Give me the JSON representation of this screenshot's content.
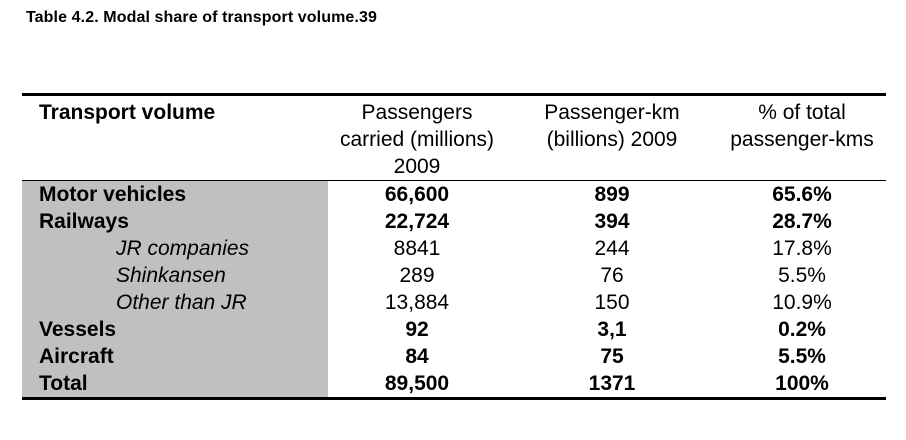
{
  "caption": "Table 4.2. Modal share of transport volume.39",
  "table": {
    "headers": [
      "Transport volume",
      "Passengers carried (millions) 2009",
      "Passenger-km (billions) 2009",
      "% of total passenger-kms"
    ],
    "rows": [
      {
        "label": "Motor vehicles",
        "passengers": "66,600",
        "pkm": "899",
        "share": "65.6%",
        "style": "bold"
      },
      {
        "label": "Railways",
        "passengers": "22,724",
        "pkm": "394",
        "share": "28.7%",
        "style": "bold"
      },
      {
        "label": "JR companies",
        "passengers": "8841",
        "pkm": "244",
        "share": "17.8%",
        "style": "sub"
      },
      {
        "label": "Shinkansen",
        "passengers": "289",
        "pkm": "76",
        "share": "5.5%",
        "style": "sub"
      },
      {
        "label": "Other than JR",
        "passengers": "13,884",
        "pkm": "150",
        "share": "10.9%",
        "style": "sub"
      },
      {
        "label": "Vessels",
        "passengers": "92",
        "pkm": "3,1",
        "share": "0.2%",
        "style": "bold"
      },
      {
        "label": "Aircraft",
        "passengers": "84",
        "pkm": "75",
        "share": "5.5%",
        "style": "bold"
      },
      {
        "label": "Total",
        "passengers": "89,500",
        "pkm": "1371",
        "share": "100%",
        "style": "bold"
      }
    ]
  },
  "colors": {
    "label_column_background": "#c0c0c0",
    "text": "#000000",
    "rule": "#000000"
  }
}
